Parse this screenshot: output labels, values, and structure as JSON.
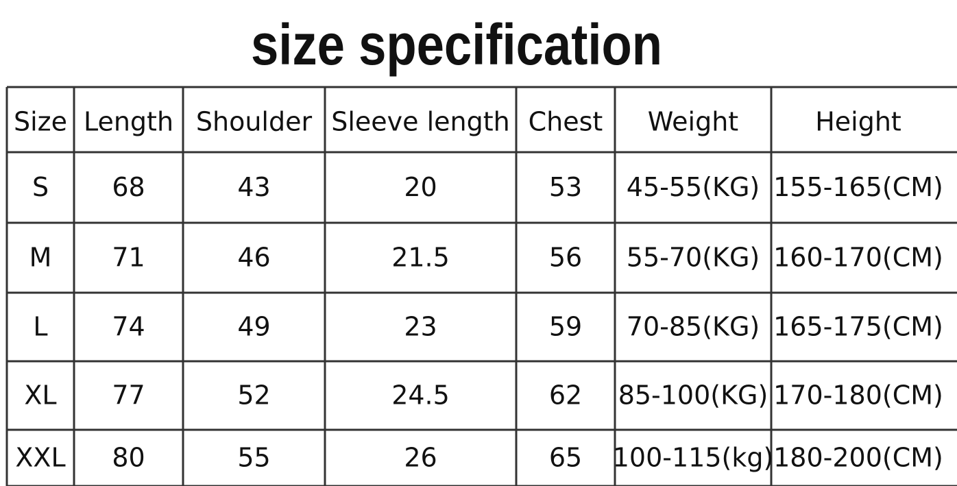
{
  "header": {
    "title": "size specification"
  },
  "table": {
    "columns": [
      "Size",
      "Length",
      "Shoulder",
      "Sleeve length",
      "Chest",
      "Weight",
      "Height"
    ],
    "rows": [
      [
        "S",
        "68",
        "43",
        "20",
        "53",
        "45-55(KG)",
        "155-165(CM)"
      ],
      [
        "M",
        "71",
        "46",
        "21.5",
        "56",
        "55-70(KG)",
        "160-170(CM)"
      ],
      [
        "L",
        "74",
        "49",
        "23",
        "59",
        "70-85(KG)",
        "165-175(CM)"
      ],
      [
        "XL",
        "77",
        "52",
        "24.5",
        "62",
        "85-100(KG)",
        "170-180(CM)"
      ],
      [
        "XXL",
        "80",
        "55",
        "26",
        "65",
        "100-115(kg)",
        "180-200(CM)"
      ]
    ]
  }
}
